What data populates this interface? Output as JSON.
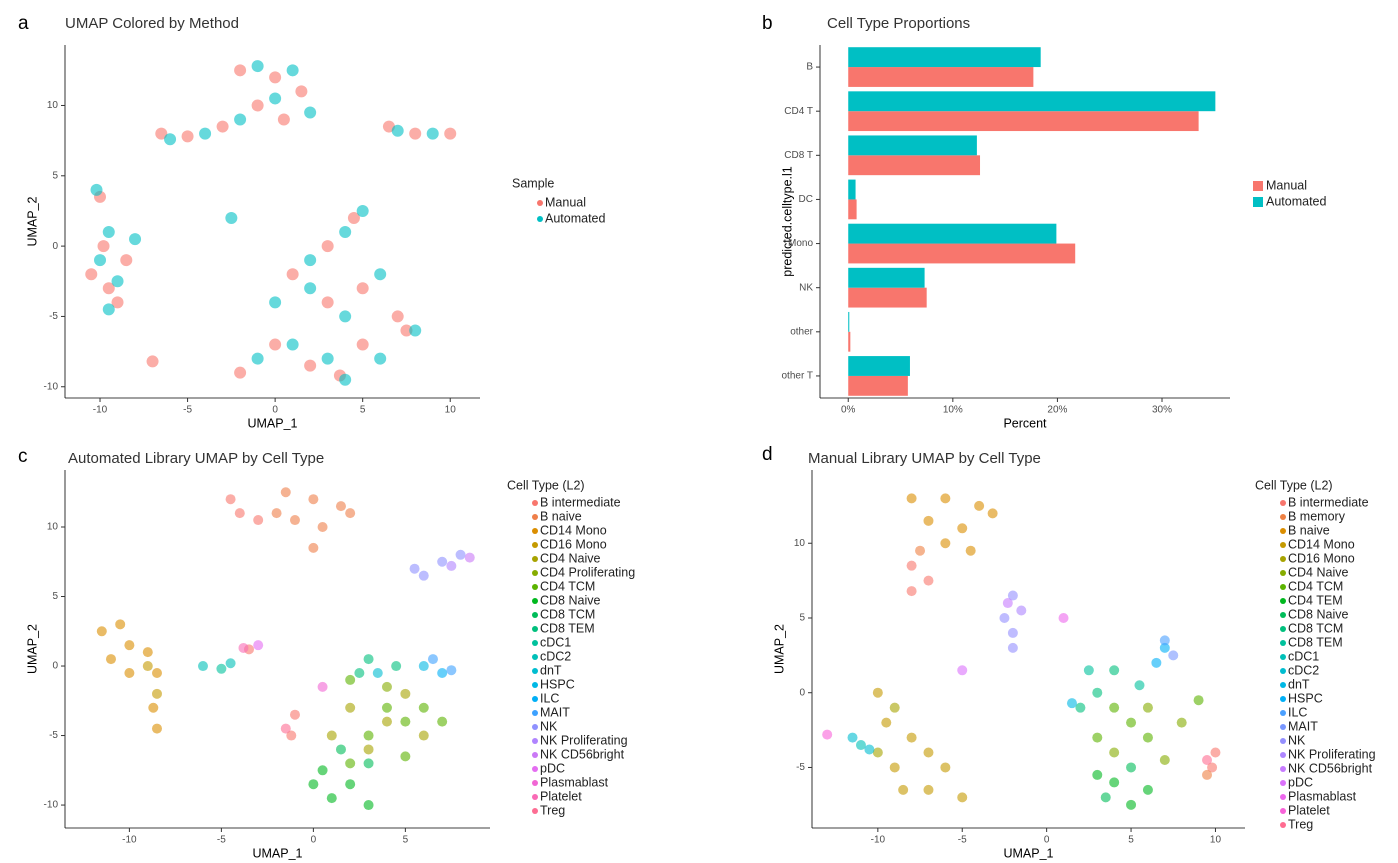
{
  "chart_data": [
    {
      "type": "scatter",
      "panel_label": "a",
      "title": "UMAP Colored by Method",
      "xlabel": "UMAP_1",
      "ylabel": "UMAP_2",
      "legend_title": "Sample",
      "legend": "right",
      "xlim": [
        -12,
        11.7
      ],
      "ylim": [
        -10.8,
        14.3
      ],
      "xticks": [
        -10,
        -5,
        0,
        5,
        10
      ],
      "yticks": [
        -10,
        -5,
        0,
        5,
        10
      ],
      "series": [
        {
          "name": "Manual",
          "color": "#F8766D",
          "x": [
            -2,
            0,
            1.5,
            -1,
            0.5,
            -3,
            -5,
            -6.5,
            6.5,
            8,
            10,
            -10,
            -9.8,
            -10.5,
            -9,
            -8.5,
            -9.5,
            4.5,
            3,
            1,
            3,
            5,
            7,
            0,
            2,
            5,
            7.5,
            3.7,
            -7,
            -2
          ],
          "y": [
            12.5,
            12,
            11,
            10,
            9,
            8.5,
            7.8,
            8,
            8.5,
            8,
            8,
            3.5,
            0,
            -2,
            -4,
            -1,
            -3,
            2,
            0,
            -2,
            -4,
            -3,
            -5,
            -7,
            -8.5,
            -7,
            -6,
            -9.2,
            -8.2,
            -9
          ]
        },
        {
          "name": "Automated",
          "color": "#00BFC4",
          "x": [
            -1,
            1,
            0,
            2,
            -2,
            -4,
            -6,
            7,
            9,
            -10.2,
            -9.5,
            -10,
            -9,
            -9.5,
            -8,
            5,
            4,
            2,
            0,
            4,
            6,
            8,
            -1,
            1,
            3,
            6,
            4,
            -2.5,
            2
          ],
          "y": [
            12.8,
            12.5,
            10.5,
            9.5,
            9,
            8,
            7.6,
            8.2,
            8,
            4,
            1,
            -1,
            -2.5,
            -4.5,
            0.5,
            2.5,
            1,
            -1,
            -4,
            -5,
            -2,
            -6,
            -8,
            -7,
            -8,
            -8,
            -9.5,
            2,
            -3
          ]
        }
      ]
    },
    {
      "type": "bar",
      "orientation": "horizontal",
      "panel_label": "b",
      "title": "Cell Type Proportions",
      "xlabel": "Percent",
      "ylabel": "predicted.celltype.l1",
      "legend": "right",
      "categories": [
        "B",
        "CD4 T",
        "CD8 T",
        "DC",
        "Mono",
        "NK",
        "other",
        "other T"
      ],
      "xlim": [
        -2.7,
        36.5
      ],
      "xticks": [
        {
          "value": 0,
          "label": "0%"
        },
        {
          "value": 10,
          "label": "10%"
        },
        {
          "value": 20,
          "label": "20%"
        },
        {
          "value": 30,
          "label": "30%"
        }
      ],
      "series": [
        {
          "name": "Manual",
          "color": "#F8766D",
          "values": [
            17.7,
            33.5,
            12.6,
            0.8,
            21.7,
            7.5,
            0.2,
            5.7
          ]
        },
        {
          "name": "Automated",
          "color": "#00BFC4",
          "values": [
            18.4,
            35.1,
            12.3,
            0.7,
            19.9,
            7.3,
            0.1,
            5.9
          ]
        }
      ]
    },
    {
      "type": "scatter",
      "panel_label": "c",
      "title": "Automated Library UMAP by Cell Type",
      "xlabel": "UMAP_1",
      "ylabel": "UMAP_2",
      "legend_title": "Cell Type (L2)",
      "legend": "right",
      "xlim": [
        -13.5,
        9.6
      ],
      "ylim": [
        -11.65,
        14.1
      ],
      "xticks": [
        -10,
        -5,
        0,
        5
      ],
      "yticks": [
        -10,
        -5,
        0,
        5,
        10
      ],
      "series": [
        {
          "name": "B intermediate",
          "color": "#F8766D",
          "x": [
            -4.5,
            -4,
            -3,
            -1,
            -1.2,
            -3.5
          ],
          "y": [
            12,
            11,
            10.5,
            -3.5,
            -5,
            1.2
          ]
        },
        {
          "name": "B naive",
          "color": "#EF7F49",
          "x": [
            -1.5,
            0,
            1.5,
            -1,
            0.5,
            2,
            0,
            -2
          ],
          "y": [
            12.5,
            12,
            11.5,
            10.5,
            10,
            11,
            8.5,
            11
          ]
        },
        {
          "name": "CD14 Mono",
          "color": "#DB8E00",
          "x": [
            -11.5,
            -10.5,
            -10,
            -11,
            -9,
            -8.5,
            -10,
            -8.7,
            -8.5
          ],
          "y": [
            2.5,
            3,
            1.5,
            0.5,
            1,
            -0.5,
            -0.5,
            -3,
            -4.5
          ]
        },
        {
          "name": "CD16 Mono",
          "color": "#C49A00",
          "x": [
            -9,
            -8.5
          ],
          "y": [
            0,
            -2
          ]
        },
        {
          "name": "CD4 Naive",
          "color": "#A7A300",
          "x": [
            2,
            4,
            6,
            5,
            3,
            1
          ],
          "y": [
            -3,
            -4,
            -5,
            -2,
            -6,
            -5
          ]
        },
        {
          "name": "CD4 Proliferating",
          "color": "#86AC00",
          "x": [
            4
          ],
          "y": [
            -1.5
          ]
        },
        {
          "name": "CD4 TCM",
          "color": "#5BB300",
          "x": [
            2,
            4,
            5,
            7,
            3,
            2,
            5,
            6
          ],
          "y": [
            -1,
            -3,
            -4,
            -4,
            -5,
            -7,
            -6.5,
            -3
          ]
        },
        {
          "name": "CD8 Naive",
          "color": "#00B81F",
          "x": [
            0,
            1,
            2,
            0.5,
            3
          ],
          "y": [
            -8.5,
            -9.5,
            -8.5,
            -7.5,
            -10
          ]
        },
        {
          "name": "CD8 TCM",
          "color": "#00BC59",
          "x": [
            3,
            1.5
          ],
          "y": [
            -7,
            -6
          ]
        },
        {
          "name": "CD8 TEM",
          "color": "#00BF7D",
          "x": [
            3,
            4.5,
            2.5
          ],
          "y": [
            0.5,
            0,
            -0.5
          ]
        },
        {
          "name": "cDC1",
          "color": "#00C19C",
          "x": [
            -5
          ],
          "y": [
            -0.2
          ]
        },
        {
          "name": "cDC2",
          "color": "#00C0B8",
          "x": [
            -6,
            -4.5
          ],
          "y": [
            0,
            0.2
          ]
        },
        {
          "name": "dnT",
          "color": "#00BDD0",
          "x": [
            3.5
          ],
          "y": [
            -0.5
          ]
        },
        {
          "name": "HSPC",
          "color": "#00B8E5",
          "x": [
            6
          ],
          "y": [
            0
          ]
        },
        {
          "name": "ILC",
          "color": "#00AFF6",
          "x": [
            7
          ],
          "y": [
            -0.5
          ]
        },
        {
          "name": "MAIT",
          "color": "#3DA1FF",
          "x": [
            6.5,
            7.5
          ],
          "y": [
            0.5,
            -0.3
          ]
        },
        {
          "name": "NK",
          "color": "#8F91FF",
          "x": [
            5.5,
            7,
            8,
            6
          ],
          "y": [
            7,
            7.5,
            8,
            6.5
          ]
        },
        {
          "name": "NK Proliferating",
          "color": "#B084FF",
          "x": [
            7.5
          ],
          "y": [
            7.2
          ]
        },
        {
          "name": "NK CD56bright",
          "color": "#CA79F6",
          "x": [
            8.5
          ],
          "y": [
            7.8
          ]
        },
        {
          "name": "pDC",
          "color": "#E46DF1",
          "x": [
            -3
          ],
          "y": [
            1.5
          ]
        },
        {
          "name": "Plasmablast",
          "color": "#F166D4",
          "x": [
            0.5
          ],
          "y": [
            -1.5
          ]
        },
        {
          "name": "Platelet",
          "color": "#F96AB5",
          "x": [
            -3.8
          ],
          "y": [
            1.3
          ]
        },
        {
          "name": "Treg",
          "color": "#FD6D93",
          "x": [
            -1.5
          ],
          "y": [
            -4.5
          ]
        }
      ]
    },
    {
      "type": "scatter",
      "panel_label": "d",
      "title": "Manual Library UMAP by Cell Type",
      "xlabel": "UMAP_1",
      "ylabel": "UMAP_2",
      "legend_title": "Cell Type (L2)",
      "legend": "right",
      "xlim": [
        -13.9,
        11.75
      ],
      "ylim": [
        -9.05,
        14.9
      ],
      "xticks": [
        -10,
        -5,
        0,
        5,
        10
      ],
      "yticks": [
        -5,
        0,
        5,
        10
      ],
      "series": [
        {
          "name": "B intermediate",
          "color": "#F8766D",
          "x": [
            -8,
            -7,
            -8,
            10,
            9.8
          ],
          "y": [
            8.5,
            7.5,
            6.8,
            -4,
            -5
          ]
        },
        {
          "name": "B memory",
          "color": "#EE8043",
          "x": [
            -7.5,
            9.5
          ],
          "y": [
            9.5,
            -5.5
          ]
        },
        {
          "name": "B naive",
          "color": "#DB8E00",
          "x": [
            -8,
            -6,
            -4,
            -7,
            -5,
            -3.2,
            -6,
            -4.5
          ],
          "y": [
            13,
            13,
            12.5,
            11.5,
            11,
            12,
            10,
            9.5
          ]
        },
        {
          "name": "CD14 Mono",
          "color": "#C49A00",
          "x": [
            -10,
            -9.5,
            -8,
            -6,
            -7,
            -5,
            -9,
            -7,
            -8.5
          ],
          "y": [
            0,
            -2,
            -3,
            -5,
            -6.5,
            -7,
            -5,
            -4,
            -6.5
          ]
        },
        {
          "name": "CD16 Mono",
          "color": "#A7A300",
          "x": [
            -9,
            -10
          ],
          "y": [
            -1,
            -4
          ]
        },
        {
          "name": "CD4 Naive",
          "color": "#86AC00",
          "x": [
            6,
            8,
            4,
            7
          ],
          "y": [
            -1,
            -2,
            -4,
            -4.5
          ]
        },
        {
          "name": "CD4 TCM",
          "color": "#5BB300",
          "x": [
            5,
            4,
            6,
            9,
            3
          ],
          "y": [
            -2,
            -1,
            -3,
            -0.5,
            -3
          ]
        },
        {
          "name": "CD4 TEM",
          "color": "#00B81F",
          "x": [
            4,
            6,
            5,
            3
          ],
          "y": [
            -6,
            -6.5,
            -7.5,
            -5.5
          ]
        },
        {
          "name": "CD8 Naive",
          "color": "#00BC59",
          "x": [
            5,
            3.5
          ],
          "y": [
            -5,
            -7
          ]
        },
        {
          "name": "CD8 TCM",
          "color": "#00BF7D",
          "x": [
            3,
            4,
            2
          ],
          "y": [
            0,
            1.5,
            -1
          ]
        },
        {
          "name": "CD8 TEM",
          "color": "#00C19C",
          "x": [
            5.5,
            2.5
          ],
          "y": [
            0.5,
            1.5
          ]
        },
        {
          "name": "cDC1",
          "color": "#00C0B8",
          "x": [
            -11
          ],
          "y": [
            -3.5
          ]
        },
        {
          "name": "cDC2",
          "color": "#00BDD0",
          "x": [
            -10.5,
            -11.5
          ],
          "y": [
            -3.8,
            -3
          ]
        },
        {
          "name": "dnT",
          "color": "#00B8E5",
          "x": [
            1.5
          ],
          "y": [
            -0.7
          ]
        },
        {
          "name": "HSPC",
          "color": "#00AFF6",
          "x": [
            7,
            6.5
          ],
          "y": [
            3,
            2
          ]
        },
        {
          "name": "ILC",
          "color": "#4BA0FF",
          "x": [
            7
          ],
          "y": [
            3.5
          ]
        },
        {
          "name": "MAIT",
          "color": "#7997FF",
          "x": [
            7.5
          ],
          "y": [
            2.5
          ]
        },
        {
          "name": "NK",
          "color": "#9590FF",
          "x": [
            -2,
            -2.5,
            -2,
            -2
          ],
          "y": [
            6.5,
            5,
            4,
            3
          ]
        },
        {
          "name": "NK Proliferating",
          "color": "#AD86FF",
          "x": [
            -1.5
          ],
          "y": [
            5.5
          ]
        },
        {
          "name": "NK CD56bright",
          "color": "#C77CFF",
          "x": [
            -2.3
          ],
          "y": [
            6
          ]
        },
        {
          "name": "pDC",
          "color": "#DB72FB",
          "x": [
            -5
          ],
          "y": [
            1.5
          ]
        },
        {
          "name": "Plasmablast",
          "color": "#ED68ED",
          "x": [
            1
          ],
          "y": [
            5
          ]
        },
        {
          "name": "Platelet",
          "color": "#F863D9",
          "x": [
            -13
          ],
          "y": [
            -2.8
          ]
        },
        {
          "name": "Treg",
          "color": "#FF6C91",
          "x": [
            9.5
          ],
          "y": [
            -4.5
          ]
        }
      ]
    }
  ]
}
